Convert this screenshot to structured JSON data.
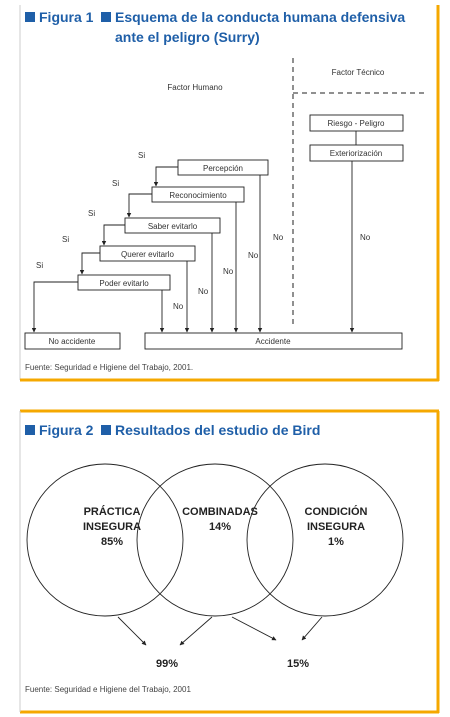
{
  "figure1": {
    "label": "Figura 1",
    "title_lines": [
      "Esquema de la conducta humana defensiva",
      "ante el peligro (Surry)"
    ],
    "factor_humano": "Factor Humano",
    "factor_tecnico": "Factor Técnico",
    "steps": [
      "Percepción",
      "Reconocimiento",
      "Saber evitarlo",
      "Querer evitarlo",
      "Poder evitarlo"
    ],
    "yes": "Si",
    "no": "No",
    "technical": [
      "Riesgo - Peligro",
      "Exteriorización"
    ],
    "no_accident": "No accidente",
    "accident": "Accidente",
    "source": "Fuente: Seguridad e Higiene del Trabajo, 2001."
  },
  "figure2": {
    "label": "Figura 2",
    "title": "Resultados del estudio de Bird",
    "circles": [
      {
        "lines": [
          "PRÁCTICA",
          "INSEGURA",
          "85%"
        ]
      },
      {
        "lines": [
          "COMBINADAS",
          "14%"
        ]
      },
      {
        "lines": [
          "CONDICIÓN",
          "INSEGURA",
          "1%"
        ]
      }
    ],
    "results": [
      "99%",
      "15%"
    ],
    "source": "Fuente: Seguridad e Higiene del Trabajo, 2001"
  }
}
